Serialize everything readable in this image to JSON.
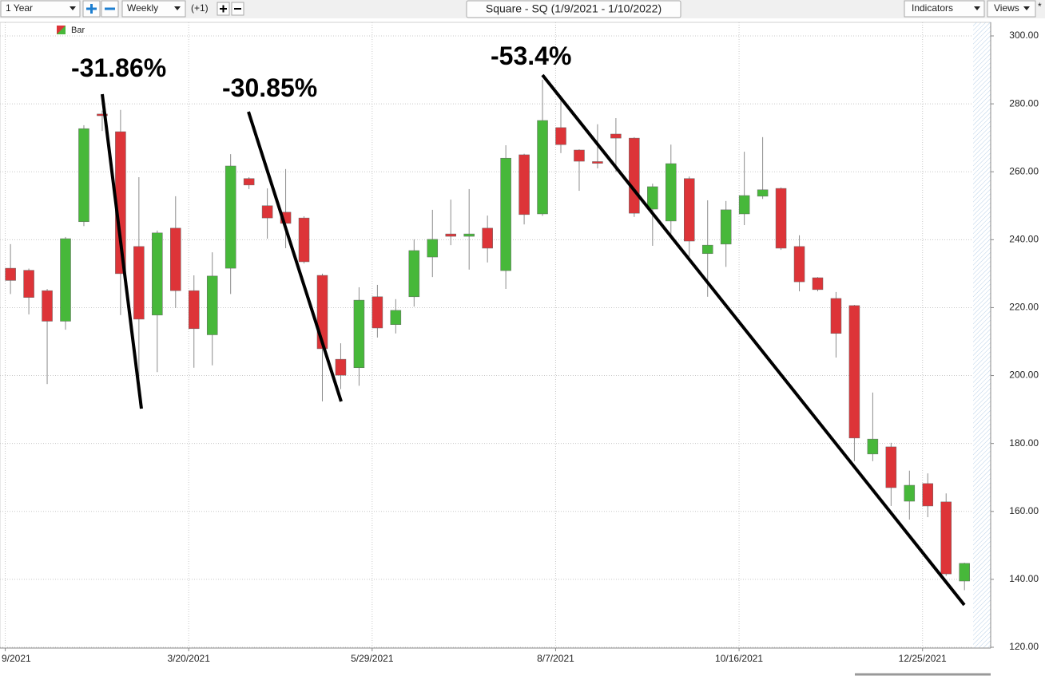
{
  "toolbar": {
    "period": "1 Year",
    "interval": "Weekly",
    "offset": "(+1)",
    "indicators": "Indicators",
    "views": "Views",
    "star": "*"
  },
  "chart_data": {
    "type": "candlestick",
    "title": "Square - SQ (1/9/2021 - 1/10/2022)",
    "legend": "Bar",
    "up_color": "#47b83a",
    "down_color": "#dd3438",
    "wick_color": "#8c8c8c",
    "grid": true,
    "annotations": [
      "-31.86%",
      "-30.85%",
      "-53.4%"
    ],
    "x": [
      "2021-01-11",
      "2021-01-18",
      "2021-01-25",
      "2021-02-01",
      "2021-02-08",
      "2021-02-15",
      "2021-02-22",
      "2021-03-01",
      "2021-03-08",
      "2021-03-15",
      "2021-03-22",
      "2021-03-29",
      "2021-04-05",
      "2021-04-12",
      "2021-04-19",
      "2021-04-26",
      "2021-05-03",
      "2021-05-10",
      "2021-05-17",
      "2021-05-24",
      "2021-05-31",
      "2021-06-07",
      "2021-06-14",
      "2021-06-21",
      "2021-06-28",
      "2021-07-05",
      "2021-07-12",
      "2021-07-19",
      "2021-07-26",
      "2021-08-02",
      "2021-08-09",
      "2021-08-16",
      "2021-08-23",
      "2021-08-30",
      "2021-09-06",
      "2021-09-13",
      "2021-09-20",
      "2021-09-27",
      "2021-10-04",
      "2021-10-11",
      "2021-10-18",
      "2021-10-25",
      "2021-11-01",
      "2021-11-08",
      "2021-11-15",
      "2021-11-22",
      "2021-11-29",
      "2021-12-06",
      "2021-12-13",
      "2021-12-20",
      "2021-12-27",
      "2022-01-03",
      "2022-01-10"
    ],
    "open": [
      231.6,
      231,
      225,
      216,
      245.3,
      277,
      271.8,
      238,
      217.8,
      243.4,
      225,
      212,
      231.6,
      258,
      250,
      248.1,
      246.4,
      229.5,
      204.8,
      202.3,
      223.2,
      215,
      223.2,
      234.9,
      241.7,
      241,
      243.4,
      230.9,
      265,
      247.6,
      273,
      266.4,
      263,
      271.1,
      269.9,
      249,
      245.5,
      258,
      235.9,
      238.7,
      247.6,
      252.8,
      255.1,
      238,
      228.8,
      222.7,
      220.6,
      176.9,
      179,
      163,
      168.2,
      162.8,
      139.5
    ],
    "high": [
      238.7,
      231.5,
      225.5,
      240.8,
      273.7,
      278,
      278.2,
      258.4,
      242.7,
      252.8,
      229.5,
      236.3,
      265.2,
      258.4,
      255.1,
      260.8,
      246.9,
      230,
      209.5,
      226,
      226.7,
      222.5,
      240.1,
      248.8,
      251.8,
      254.9,
      247.1,
      267.8,
      265.3,
      287.1,
      282.4,
      266.6,
      274,
      275.8,
      270.2,
      256.5,
      268,
      258.6,
      251.6,
      251.4,
      265.9,
      270.2,
      255.4,
      241.3,
      229,
      224.6,
      220.8,
      195,
      180.2,
      172,
      171.2,
      165.3,
      144.9
    ],
    "low": [
      224,
      218,
      197.5,
      213.5,
      244,
      272,
      217.8,
      196,
      201,
      219.9,
      202.3,
      203,
      224,
      254.9,
      240.3,
      237.5,
      233,
      192.4,
      196,
      197,
      211.2,
      212.4,
      220.3,
      229,
      238.4,
      231.2,
      233.3,
      225.5,
      244.5,
      247,
      265.5,
      254.4,
      261,
      260,
      246.7,
      238.2,
      240.8,
      235,
      223.2,
      232,
      244.3,
      252,
      237,
      224.8,
      224.8,
      205.3,
      174.8,
      174.8,
      161.6,
      157.6,
      158.3,
      141,
      136.8
    ],
    "close": [
      228,
      223,
      216,
      240.3,
      272.7,
      276.5,
      230,
      216.6,
      242,
      225,
      213.8,
      229.3,
      261.7,
      256.1,
      246.4,
      244.8,
      233.5,
      207.9,
      200.1,
      222.2,
      214,
      219.2,
      236.8,
      240.1,
      241,
      241.7,
      237.5,
      264,
      247.4,
      275.1,
      268,
      263.1,
      262.5,
      269.9,
      247.8,
      255.6,
      262.4,
      239.6,
      238.4,
      248.8,
      253,
      254.7,
      237.5,
      227.6,
      225.3,
      212.4,
      181.6,
      181.3,
      167,
      167.7,
      161.6,
      141.6,
      144.7
    ],
    "xlim": [
      "2021-01-07",
      "2022-01-20"
    ],
    "xticks": [
      {
        "value": "2021-01-09",
        "label": "9/2021"
      },
      {
        "value": "2021-03-20",
        "label": "3/20/2021"
      },
      {
        "value": "2021-05-29",
        "label": "5/29/2021"
      },
      {
        "value": "2021-08-07",
        "label": "8/7/2021"
      },
      {
        "value": "2021-10-16",
        "label": "10/16/2021"
      },
      {
        "value": "2021-12-25",
        "label": "12/25/2021"
      }
    ],
    "ylim": [
      120,
      300
    ],
    "yticks": [
      {
        "value": 120,
        "label": "120.00"
      },
      {
        "value": 140,
        "label": "140.00"
      },
      {
        "value": 160,
        "label": "160.00"
      },
      {
        "value": 180,
        "label": "180.00"
      },
      {
        "value": 200,
        "label": "200.00"
      },
      {
        "value": 220,
        "label": "220.00"
      },
      {
        "value": 240,
        "label": "240.00"
      },
      {
        "value": 260,
        "label": "260.00"
      },
      {
        "value": 280,
        "label": "280.00"
      },
      {
        "value": 300,
        "label": "300.00"
      }
    ]
  }
}
